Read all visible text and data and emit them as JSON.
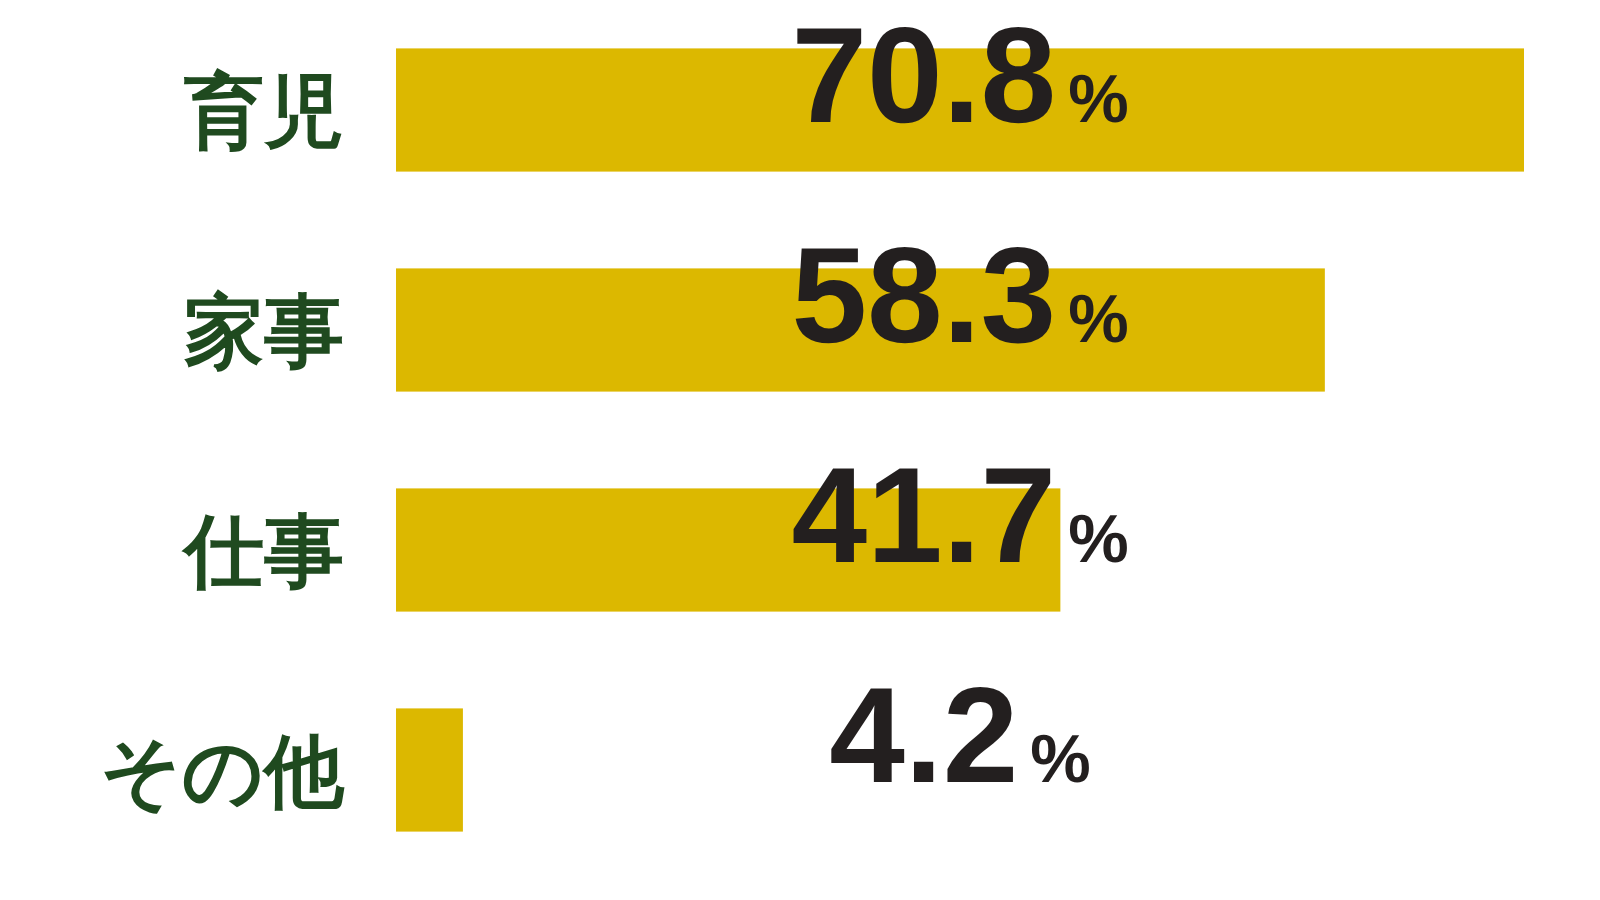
{
  "chart_data": {
    "type": "bar",
    "orientation": "horizontal",
    "categories": [
      "育児",
      "家事",
      "仕事",
      "その他"
    ],
    "values": [
      70.8,
      58.3,
      41.7,
      4.2
    ],
    "color": "#dcb800",
    "value_labels": [
      "70.8%",
      "58.3%",
      "41.7%",
      "4.2%"
    ]
  }
}
